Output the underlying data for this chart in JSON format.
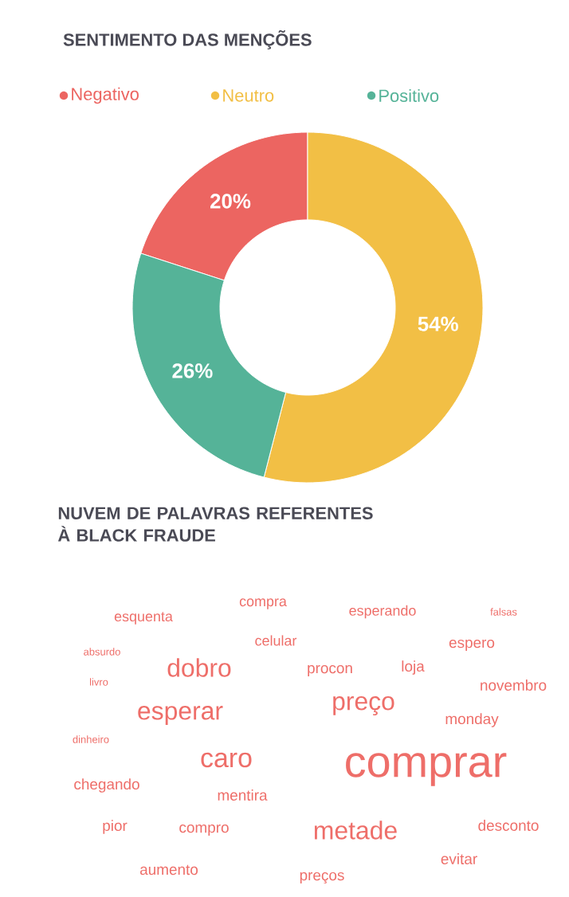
{
  "chart_data": [
    {
      "type": "donut",
      "title": "SENTIMENTO DAS MENÇÕES",
      "categories": [
        "Negativo",
        "Neutro",
        "Positivo"
      ],
      "values": [
        20,
        54,
        26
      ],
      "colors": [
        "#ec6561",
        "#f2bf45",
        "#55b398"
      ],
      "value_labels": [
        "20%",
        "54%",
        "26%"
      ],
      "legend": "top"
    },
    {
      "type": "other",
      "title": "NUVEM DE PALAVRAS REFERENTES À BLACK FRAUDE",
      "annotations": [
        "esquenta",
        "compra",
        "esperando",
        "falsas",
        "absurdo",
        "celular",
        "espero",
        "dobro",
        "procon",
        "loja",
        "livro",
        "novembro",
        "esperar",
        "preço",
        "monday",
        "dinheiro",
        "caro",
        "comprar",
        "chegando",
        "mentira",
        "pior",
        "compro",
        "metade",
        "desconto",
        "evitar",
        "aumento",
        "preços"
      ]
    }
  ]
}
